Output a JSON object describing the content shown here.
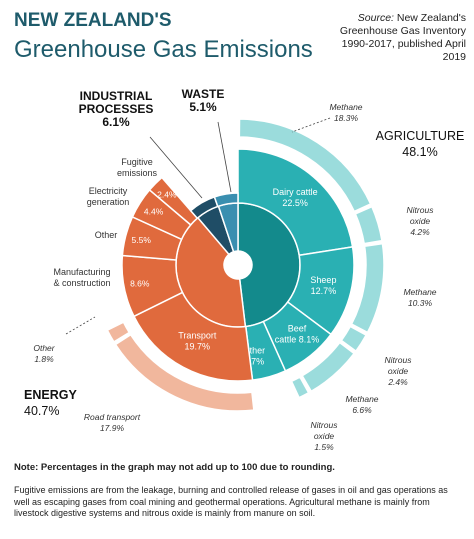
{
  "header": {
    "title_line1": "NEW ZEALAND'S",
    "title_line2": "Greenhouse Gas Emissions",
    "source_label": "Source:",
    "source_text": "New Zealand's Greenhouse Gas Inventory 1990-2017, published April 2019"
  },
  "colors": {
    "agriculture_dark": "#138a8c",
    "agriculture_mid": "#2ab0b3",
    "agriculture_light": "#9bdcdc",
    "energy_dark": "#e06a3d",
    "energy_light": "#f1b79d",
    "industrial": "#1f4d66",
    "waste": "#3a8fb0"
  },
  "chart_data": {
    "type": "pie",
    "sectors": [
      {
        "name": "AGRICULTURE",
        "value": 48.1,
        "label": "48.1%",
        "subcategories": [
          {
            "name": "Dairy cattle",
            "value": 22.5,
            "label": "22.5%"
          },
          {
            "name": "Sheep",
            "value": 12.7,
            "label": "12.7%"
          },
          {
            "name": "Beef cattle",
            "value": 8.1,
            "label": "8.1%"
          },
          {
            "name": "Other",
            "value": 4.7,
            "label": "4.7%"
          }
        ],
        "gases": [
          {
            "name": "Methane",
            "value": 18.3,
            "label": "18.3%"
          },
          {
            "name": "Nitrous oxide",
            "value": 4.2,
            "label": "4.2%"
          },
          {
            "name": "Methane",
            "value": 10.3,
            "label": "10.3%"
          },
          {
            "name": "Nitrous oxide",
            "value": 2.4,
            "label": "2.4%"
          },
          {
            "name": "Methane",
            "value": 6.6,
            "label": "6.6%"
          },
          {
            "name": "Nitrous oxide",
            "value": 1.5,
            "label": "1.5%"
          }
        ]
      },
      {
        "name": "ENERGY",
        "value": 40.7,
        "label": "40.7%",
        "subcategories": [
          {
            "name": "Transport",
            "value": 19.7,
            "label": "19.7%"
          },
          {
            "name": "Manufacturing & construction",
            "value": 8.6,
            "label": "8.6%"
          },
          {
            "name": "Other",
            "value": 5.5,
            "label": "5.5%"
          },
          {
            "name": "Electricity generation",
            "value": 4.4,
            "label": "4.4%"
          },
          {
            "name": "Fugitive emissions",
            "value": 2.4,
            "label": "2.4%"
          }
        ],
        "outer": [
          {
            "name": "Road transport",
            "value": 17.9,
            "label": "17.9%"
          },
          {
            "name": "Other",
            "value": 1.8,
            "label": "1.8%"
          }
        ]
      },
      {
        "name": "INDUSTRIAL PROCESSES",
        "value": 6.1,
        "label": "6.1%"
      },
      {
        "name": "WASTE",
        "value": 5.1,
        "label": "5.1%"
      }
    ]
  },
  "note": "Note: Percentages in the graph may not add up to 100 due to rounding.",
  "footnote": "Fugitive emissions are from the leakage, burning and controlled release of gases in oil and gas operations as well as escaping gases from coal mining and geothermal operations. Agricultural methane is mainly from livestock digestive systems and nitrous oxide is mainly from manure on soil."
}
